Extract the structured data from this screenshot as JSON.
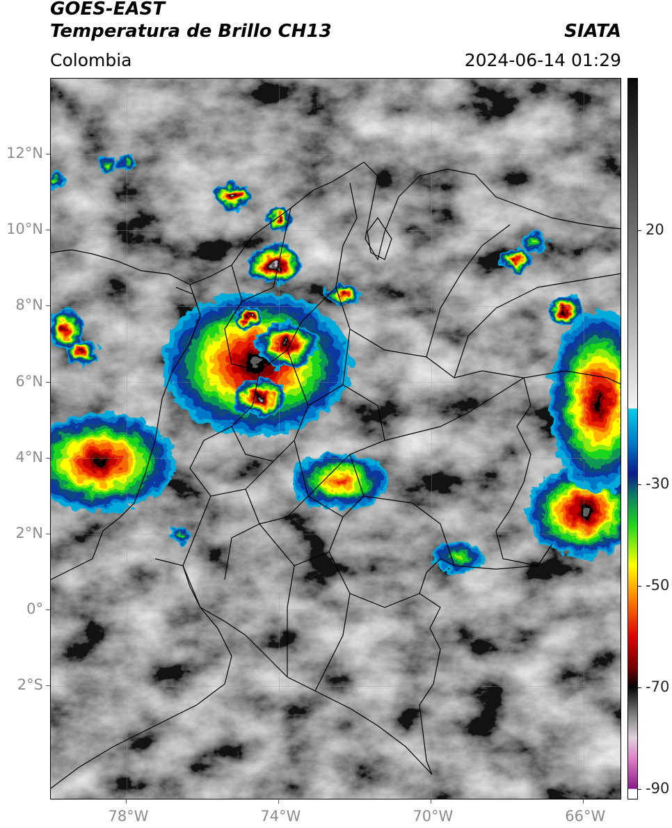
{
  "header": {
    "satellite": "GOES-EAST",
    "product": "Temperatura de Brillo CH13",
    "region": "Colombia",
    "agency": "SIATA",
    "datetime": "2024-06-14 01:29"
  },
  "map": {
    "lon_range": [
      -80.0,
      -65.0
    ],
    "lat_range": [
      -5.0,
      14.0
    ],
    "lat_ticks": [
      {
        "value": 12,
        "label": "12°N"
      },
      {
        "value": 10,
        "label": "10°N"
      },
      {
        "value": 8,
        "label": "8°N"
      },
      {
        "value": 6,
        "label": "6°N"
      },
      {
        "value": 4,
        "label": "4°N"
      },
      {
        "value": 2,
        "label": "2°N"
      },
      {
        "value": 0,
        "label": "0°"
      },
      {
        "value": -2,
        "label": "2°S"
      }
    ],
    "lon_ticks": [
      {
        "value": -78,
        "label": "78°W"
      },
      {
        "value": -74,
        "label": "74°W"
      },
      {
        "value": -70,
        "label": "70°W"
      },
      {
        "value": -66,
        "label": "66°W"
      }
    ],
    "grid": true,
    "boundary_color": "#000000",
    "cloud_cells": [
      {
        "lon": -78.7,
        "lat": 3.9,
        "rx": 2.0,
        "ry": 1.3,
        "min_temp": -72
      },
      {
        "lon": -74.6,
        "lat": 6.5,
        "rx": 2.5,
        "ry": 1.9,
        "min_temp": -74
      },
      {
        "lon": -73.8,
        "lat": 7.0,
        "rx": 0.8,
        "ry": 0.6,
        "min_temp": -75
      },
      {
        "lon": -74.5,
        "lat": 5.6,
        "rx": 0.7,
        "ry": 0.5,
        "min_temp": -78
      },
      {
        "lon": -74.1,
        "lat": 9.1,
        "rx": 0.7,
        "ry": 0.55,
        "min_temp": -84
      },
      {
        "lon": -74.8,
        "lat": 7.7,
        "rx": 0.4,
        "ry": 0.3,
        "min_temp": -78
      },
      {
        "lon": -75.2,
        "lat": 10.9,
        "rx": 0.5,
        "ry": 0.35,
        "min_temp": -78
      },
      {
        "lon": -74.0,
        "lat": 10.3,
        "rx": 0.35,
        "ry": 0.3,
        "min_temp": -72
      },
      {
        "lon": -72.3,
        "lat": 8.3,
        "rx": 0.45,
        "ry": 0.3,
        "min_temp": -66
      },
      {
        "lon": -72.4,
        "lat": 3.4,
        "rx": 1.3,
        "ry": 0.75,
        "min_temp": -58
      },
      {
        "lon": -79.2,
        "lat": 6.8,
        "rx": 0.45,
        "ry": 0.4,
        "min_temp": -68
      },
      {
        "lon": -79.6,
        "lat": 7.4,
        "rx": 0.45,
        "ry": 0.55,
        "min_temp": -68
      },
      {
        "lon": -66.0,
        "lat": 2.6,
        "rx": 1.5,
        "ry": 1.2,
        "min_temp": -74
      },
      {
        "lon": -65.6,
        "lat": 5.5,
        "rx": 1.3,
        "ry": 2.4,
        "min_temp": -72
      },
      {
        "lon": -66.5,
        "lat": 7.9,
        "rx": 0.45,
        "ry": 0.4,
        "min_temp": -72
      },
      {
        "lon": -67.8,
        "lat": 9.2,
        "rx": 0.4,
        "ry": 0.3,
        "min_temp": -66
      },
      {
        "lon": -67.3,
        "lat": 9.7,
        "rx": 0.4,
        "ry": 0.3,
        "min_temp": -45
      },
      {
        "lon": -69.3,
        "lat": 1.4,
        "rx": 0.7,
        "ry": 0.4,
        "min_temp": -45
      },
      {
        "lon": -76.6,
        "lat": 2.0,
        "rx": 0.25,
        "ry": 0.2,
        "min_temp": -40
      },
      {
        "lon": -78.5,
        "lat": 11.7,
        "rx": 0.25,
        "ry": 0.25,
        "min_temp": -42
      },
      {
        "lon": -78.0,
        "lat": 11.8,
        "rx": 0.25,
        "ry": 0.2,
        "min_temp": -38
      },
      {
        "lon": -79.9,
        "lat": 11.3,
        "rx": 0.25,
        "ry": 0.2,
        "min_temp": -45
      }
    ]
  },
  "colorbar": {
    "min": -92,
    "max": 50,
    "tick_labels": [
      {
        "value": 20,
        "label": "20"
      },
      {
        "value": -30,
        "label": "-30"
      },
      {
        "value": -50,
        "label": "-50"
      },
      {
        "value": -70,
        "label": "-70"
      },
      {
        "value": -90,
        "label": "-90"
      }
    ],
    "stops": [
      {
        "t": 50,
        "color": "#0a0a0a"
      },
      {
        "t": 20,
        "color": "#6e6e6e"
      },
      {
        "t": -15,
        "color": "#f2f2f2"
      },
      {
        "t": -15.1,
        "color": "#00cfe8"
      },
      {
        "t": -22,
        "color": "#0077c8"
      },
      {
        "t": -28,
        "color": "#0a1a8c"
      },
      {
        "t": -32,
        "color": "#0a7a6a"
      },
      {
        "t": -38,
        "color": "#1ed61e"
      },
      {
        "t": -46,
        "color": "#ffff00"
      },
      {
        "t": -52,
        "color": "#ff8c00"
      },
      {
        "t": -60,
        "color": "#e00000"
      },
      {
        "t": -66,
        "color": "#7a0000"
      },
      {
        "t": -70,
        "color": "#050505"
      },
      {
        "t": -76,
        "color": "#8a8a8a"
      },
      {
        "t": -80,
        "color": "#e0d0dc"
      },
      {
        "t": -84,
        "color": "#e080c8"
      },
      {
        "t": -90,
        "color": "#8a1a8a"
      },
      {
        "t": -90.1,
        "color": "#ffffff"
      },
      {
        "t": -92,
        "color": "#ffffff"
      }
    ]
  }
}
